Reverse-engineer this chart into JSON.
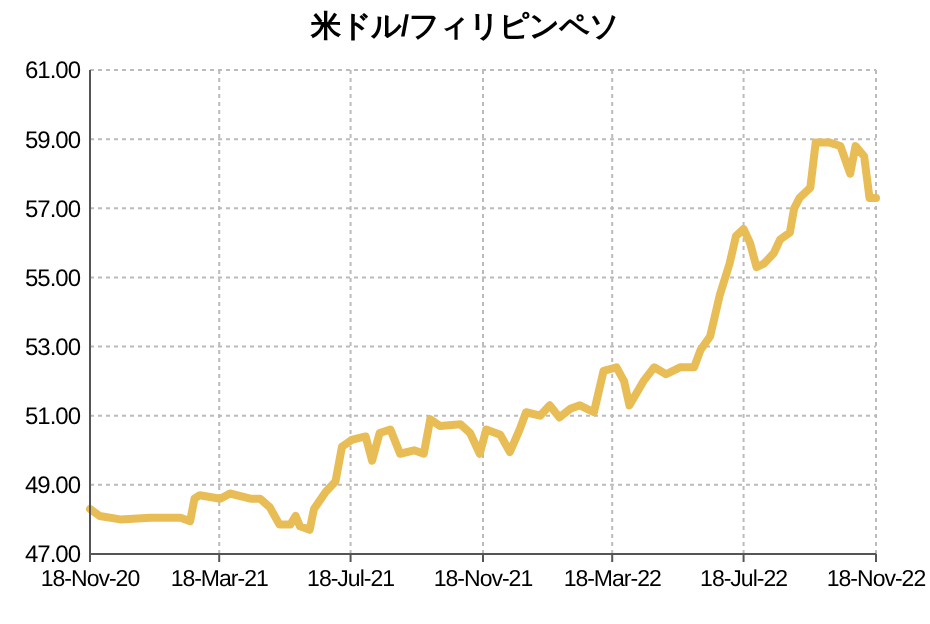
{
  "chart_data": {
    "type": "line",
    "title": "米ドル/フィリピンペソ",
    "x": [
      "2020-11-18",
      "2020-11-27",
      "2020-12-16",
      "2021-01-13",
      "2021-02-10",
      "2021-02-19",
      "2021-02-23",
      "2021-02-28",
      "2021-03-19",
      "2021-03-28",
      "2021-04-16",
      "2021-04-25",
      "2021-05-04",
      "2021-05-13",
      "2021-05-23",
      "2021-05-28",
      "2021-06-01",
      "2021-06-10",
      "2021-06-14",
      "2021-06-25",
      "2021-07-04",
      "2021-07-10",
      "2021-07-19",
      "2021-08-01",
      "2021-08-07",
      "2021-08-14",
      "2021-08-24",
      "2021-09-02",
      "2021-09-15",
      "2021-09-24",
      "2021-09-30",
      "2021-10-09",
      "2021-10-28",
      "2021-11-06",
      "2021-11-15",
      "2021-11-21",
      "2021-12-04",
      "2021-12-13",
      "2021-12-22",
      "2021-12-28",
      "2022-01-10",
      "2022-01-19",
      "2022-01-28",
      "2022-02-07",
      "2022-02-16",
      "2022-03-01",
      "2022-03-10",
      "2022-03-22",
      "2022-03-29",
      "2022-04-03",
      "2022-04-16",
      "2022-04-26",
      "2022-05-07",
      "2022-05-20",
      "2022-06-02",
      "2022-06-08",
      "2022-06-17",
      "2022-06-26",
      "2022-07-05",
      "2022-07-11",
      "2022-07-18",
      "2022-07-24",
      "2022-07-30",
      "2022-08-06",
      "2022-08-15",
      "2022-08-21",
      "2022-08-30",
      "2022-09-03",
      "2022-09-08",
      "2022-09-18",
      "2022-09-23",
      "2022-10-06",
      "2022-10-16",
      "2022-10-25",
      "2022-10-30",
      "2022-11-07",
      "2022-11-12",
      "2022-11-18"
    ],
    "series": [
      {
        "color": "#e9bd55",
        "values": [
          48.3,
          48.1,
          48.0,
          48.05,
          48.05,
          47.95,
          48.6,
          48.7,
          48.6,
          48.75,
          48.6,
          48.6,
          48.35,
          47.85,
          47.85,
          48.1,
          47.8,
          47.7,
          48.3,
          48.8,
          49.1,
          50.1,
          50.3,
          50.4,
          49.7,
          50.5,
          50.6,
          49.9,
          50.0,
          49.9,
          50.9,
          50.7,
          50.75,
          50.5,
          49.9,
          50.6,
          50.45,
          49.95,
          50.6,
          51.1,
          51.0,
          51.3,
          50.95,
          51.2,
          51.3,
          51.1,
          52.3,
          52.4,
          52.0,
          51.3,
          52.0,
          52.4,
          52.2,
          52.4,
          52.4,
          52.9,
          53.3,
          54.5,
          55.4,
          56.2,
          56.4,
          56.0,
          55.3,
          55.4,
          55.7,
          56.1,
          56.3,
          57.0,
          57.3,
          57.6,
          58.9,
          58.9,
          58.8,
          58.0,
          58.8,
          58.5,
          57.3,
          57.3
        ]
      }
    ],
    "xlim": [
      "2020-11-18",
      "2022-11-18"
    ],
    "xticks": [
      {
        "value": "2020-11-18",
        "label": "18-Nov-20"
      },
      {
        "value": "2021-03-18",
        "label": "18-Mar-21"
      },
      {
        "value": "2021-07-18",
        "label": "18-Jul-21"
      },
      {
        "value": "2021-11-18",
        "label": "18-Nov-21"
      },
      {
        "value": "2022-03-18",
        "label": "18-Mar-22"
      },
      {
        "value": "2022-07-18",
        "label": "18-Jul-22"
      },
      {
        "value": "2022-11-18",
        "label": "18-Nov-22"
      }
    ],
    "ylim": [
      47,
      61
    ],
    "yticks": [
      {
        "value": 47,
        "label": "47.00"
      },
      {
        "value": 49,
        "label": "49.00"
      },
      {
        "value": 51,
        "label": "51.00"
      },
      {
        "value": 53,
        "label": "53.00"
      },
      {
        "value": 55,
        "label": "55.00"
      },
      {
        "value": 57,
        "label": "57.00"
      },
      {
        "value": 59,
        "label": "59.00"
      },
      {
        "value": 61,
        "label": "61.00"
      }
    ],
    "grid": true,
    "line_style": "solid",
    "marker": "none"
  }
}
